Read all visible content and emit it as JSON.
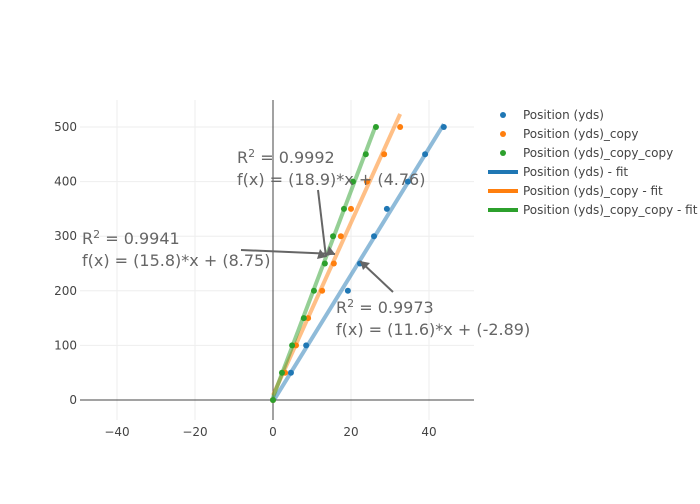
{
  "chart_data": {
    "type": "scatter",
    "title": "",
    "xlabel": "",
    "ylabel": "",
    "xlim": [
      -50,
      52
    ],
    "ylim": [
      -30,
      550
    ],
    "xticks": [
      -40,
      -20,
      0,
      20,
      40
    ],
    "yticks": [
      0,
      100,
      200,
      300,
      400,
      500
    ],
    "grid": true,
    "legend_position": "right",
    "series": [
      {
        "name": "Position (yds)",
        "mode": "markers",
        "color": "#1f77b4",
        "x": [
          0,
          4.6,
          8.5,
          19.2,
          22.3,
          25.9,
          29.2,
          34.6,
          39,
          43.8
        ],
        "y": [
          0,
          50,
          100,
          200,
          250,
          300,
          350,
          400,
          450,
          500
        ]
      },
      {
        "name": "Position (yds)_copy",
        "mode": "markers",
        "color": "#ff7f0e",
        "x": [
          0,
          3.1,
          5.9,
          9,
          12.6,
          15.6,
          17.4,
          20,
          24.1,
          28.5,
          32.6
        ],
        "y": [
          0,
          50,
          100,
          150,
          200,
          250,
          300,
          350,
          400,
          450,
          500
        ]
      },
      {
        "name": "Position (yds)_copy_copy",
        "mode": "markers",
        "color": "#2ca02c",
        "x": [
          0,
          2.3,
          4.9,
          7.9,
          10.5,
          13.3,
          15.4,
          18.2,
          20.5,
          23.8,
          26.4
        ],
        "y": [
          0,
          50,
          100,
          150,
          200,
          250,
          300,
          350,
          400,
          450,
          500
        ]
      },
      {
        "name": "Position (yds) - fit",
        "mode": "line",
        "color": "#1f77b4",
        "slope": 11.6,
        "intercept": -2.89,
        "xrange": [
          0,
          43.8
        ]
      },
      {
        "name": "Position (yds)_copy - fit",
        "mode": "line",
        "color": "#ff7f0e",
        "slope": 15.8,
        "intercept": 8.75,
        "xrange": [
          0,
          32.6
        ]
      },
      {
        "name": "Position (yds)_copy_copy - fit",
        "mode": "line",
        "color": "#2ca02c",
        "slope": 18.9,
        "intercept": 4.76,
        "xrange": [
          0,
          26.4
        ]
      }
    ],
    "annotations": [
      {
        "r2_label": "R",
        "r2_sup": "2",
        "r2_value": " = 0.9992",
        "formula": "f(x) = (18.9)*x + (4.76)",
        "point": [
          13.3,
          250
        ]
      },
      {
        "r2_label": "R",
        "r2_sup": "2",
        "r2_value": " = 0.9941",
        "formula": "f(x) = (15.8)*x + (8.75)",
        "point": [
          15.6,
          263
        ]
      },
      {
        "r2_label": "R",
        "r2_sup": "2",
        "r2_value": " = 0.9973",
        "formula": "f(x) = (11.6)*x + (-2.89)",
        "point": [
          22.3,
          250
        ]
      }
    ]
  }
}
